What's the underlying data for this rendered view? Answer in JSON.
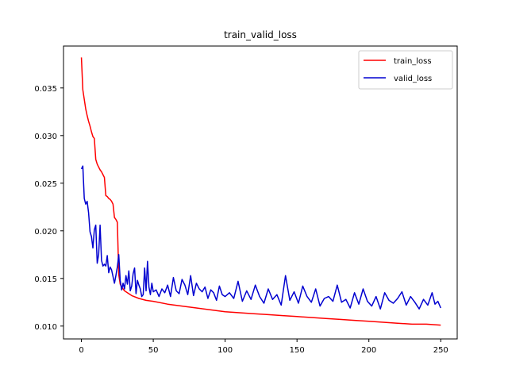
{
  "chart_data": {
    "type": "line",
    "title": "train_valid_loss",
    "xlabel": "",
    "ylabel": "",
    "xlim": [
      -12.45,
      261.45
    ],
    "ylim": [
      0.00865,
      0.0394
    ],
    "xticks": [
      0,
      50,
      100,
      150,
      200,
      250
    ],
    "yticks": [
      0.01,
      0.015,
      0.02,
      0.025,
      0.03,
      0.035
    ],
    "ytick_labels": [
      "0.010",
      "0.015",
      "0.020",
      "0.025",
      "0.030",
      "0.035"
    ],
    "xtick_labels": [
      "0",
      "50",
      "100",
      "150",
      "200",
      "250"
    ],
    "legend_position": "top-right",
    "grid": false,
    "series": [
      {
        "name": "train_loss",
        "color": "#ff0000",
        "x": [
          0,
          1,
          2,
          3,
          4,
          5,
          6,
          7,
          8,
          9,
          10,
          11,
          12,
          13,
          14,
          15,
          16,
          17,
          18,
          19,
          20,
          21,
          22,
          23,
          24,
          25,
          26,
          27,
          28,
          29,
          30,
          35,
          40,
          45,
          50,
          60,
          70,
          80,
          90,
          100,
          110,
          120,
          130,
          140,
          150,
          160,
          170,
          180,
          190,
          200,
          210,
          220,
          230,
          240,
          250
        ],
        "values": [
          0.0382,
          0.0348,
          0.0338,
          0.0328,
          0.0321,
          0.0315,
          0.031,
          0.0304,
          0.0299,
          0.0297,
          0.0275,
          0.027,
          0.0267,
          0.0264,
          0.0262,
          0.0259,
          0.0256,
          0.0237,
          0.0236,
          0.0234,
          0.0233,
          0.0231,
          0.0228,
          0.0214,
          0.0212,
          0.0209,
          0.0154,
          0.0144,
          0.0141,
          0.0139,
          0.0137,
          0.0132,
          0.0129,
          0.0127,
          0.0126,
          0.0123,
          0.0121,
          0.0119,
          0.0117,
          0.0115,
          0.0114,
          0.0113,
          0.0112,
          0.0111,
          0.011,
          0.0109,
          0.0108,
          0.0107,
          0.0106,
          0.0105,
          0.0104,
          0.0103,
          0.0102,
          0.0102,
          0.0101
        ]
      },
      {
        "name": "valid_loss",
        "color": "#0000d0",
        "x": [
          0,
          1,
          2,
          3,
          4,
          5,
          6,
          7,
          8,
          9,
          10,
          11,
          12,
          13,
          14,
          15,
          16,
          17,
          18,
          19,
          20,
          21,
          22,
          23,
          24,
          25,
          26,
          27,
          28,
          29,
          30,
          31,
          32,
          33,
          34,
          35,
          36,
          37,
          38,
          39,
          40,
          41,
          42,
          43,
          44,
          45,
          46,
          47,
          48,
          49,
          50,
          52,
          54,
          56,
          58,
          60,
          62,
          64,
          66,
          68,
          70,
          72,
          74,
          76,
          78,
          80,
          82,
          84,
          86,
          88,
          90,
          92,
          94,
          96,
          98,
          100,
          103,
          106,
          109,
          112,
          115,
          118,
          121,
          124,
          127,
          130,
          133,
          136,
          139,
          142,
          145,
          148,
          151,
          154,
          157,
          160,
          163,
          166,
          169,
          172,
          175,
          178,
          181,
          184,
          187,
          190,
          193,
          196,
          199,
          202,
          205,
          208,
          211,
          214,
          217,
          220,
          223,
          226,
          229,
          232,
          235,
          238,
          241,
          244,
          246,
          248,
          250
        ],
        "values": [
          0.0265,
          0.0268,
          0.0234,
          0.0228,
          0.0231,
          0.0219,
          0.0199,
          0.0194,
          0.0182,
          0.0201,
          0.0206,
          0.0166,
          0.0175,
          0.0206,
          0.0169,
          0.0163,
          0.0165,
          0.0163,
          0.0174,
          0.0156,
          0.0162,
          0.0159,
          0.0152,
          0.0145,
          0.0153,
          0.0162,
          0.0175,
          0.0148,
          0.0138,
          0.0145,
          0.0139,
          0.0153,
          0.0144,
          0.0158,
          0.0137,
          0.0142,
          0.0155,
          0.0161,
          0.0134,
          0.0148,
          0.0143,
          0.0139,
          0.0131,
          0.0133,
          0.0161,
          0.0137,
          0.0168,
          0.0141,
          0.0133,
          0.0145,
          0.0136,
          0.0138,
          0.0131,
          0.0139,
          0.0135,
          0.0143,
          0.0131,
          0.0151,
          0.0137,
          0.0134,
          0.0149,
          0.0143,
          0.0133,
          0.0153,
          0.0132,
          0.0145,
          0.0139,
          0.0136,
          0.0141,
          0.0129,
          0.0138,
          0.0135,
          0.0127,
          0.0142,
          0.0133,
          0.0131,
          0.0135,
          0.0129,
          0.0147,
          0.0126,
          0.0137,
          0.0128,
          0.0143,
          0.0131,
          0.0124,
          0.0139,
          0.0128,
          0.0133,
          0.0122,
          0.0153,
          0.0127,
          0.0136,
          0.0124,
          0.0142,
          0.0131,
          0.0125,
          0.0139,
          0.0121,
          0.0129,
          0.0131,
          0.0126,
          0.0143,
          0.0125,
          0.0128,
          0.0119,
          0.0135,
          0.0123,
          0.0139,
          0.0126,
          0.0121,
          0.0131,
          0.0118,
          0.0135,
          0.0127,
          0.0124,
          0.0129,
          0.0136,
          0.0122,
          0.0131,
          0.0125,
          0.0118,
          0.0128,
          0.0122,
          0.0135,
          0.0123,
          0.0126,
          0.0119
        ]
      }
    ]
  }
}
